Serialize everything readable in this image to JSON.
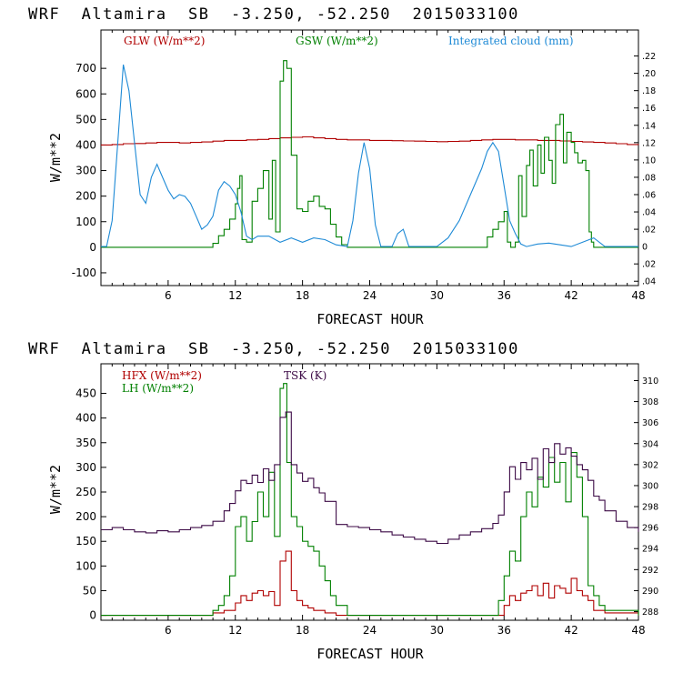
{
  "chart_data": [
    {
      "type": "line",
      "title": "WRF  Altamira  SB  -3.250, -52.250  2015033100",
      "xlabel": "FORECAST HOUR",
      "ylabel": "W/m**2",
      "xlim": [
        0,
        48
      ],
      "ylim": [
        -150,
        850
      ],
      "y2lim": [
        -0.045,
        0.25
      ],
      "xticks": [
        6,
        12,
        18,
        24,
        30,
        36,
        42,
        48
      ],
      "xtick_labels": [
        "6",
        "12",
        "18",
        "24",
        "30",
        "36",
        "42",
        "48"
      ],
      "yticks": [
        -100,
        0,
        100,
        200,
        300,
        400,
        500,
        600,
        700
      ],
      "ytick_labels": [
        "-100",
        "0",
        "100",
        "200",
        "300",
        "400",
        "500",
        "600",
        "700"
      ],
      "y2ticks": [
        -0.04,
        -0.02,
        0,
        0.02,
        0.04,
        0.06,
        0.08,
        0.1,
        0.12,
        0.14,
        0.16,
        0.18,
        0.2,
        0.22
      ],
      "y2tick_labels": [
        ".04",
        ".02",
        "0",
        ".02",
        ".04",
        ".06",
        ".08",
        ".10",
        ".12",
        ".14",
        ".16",
        ".18",
        ".20",
        ".22"
      ],
      "series": [
        {
          "name": "GLW (W/m**2)",
          "axis": "left",
          "color": "#b00000",
          "step": true,
          "x": [
            0,
            1,
            2,
            3,
            4,
            5,
            6,
            7,
            8,
            9,
            10,
            11,
            12,
            13,
            14,
            15,
            16,
            17,
            18,
            19,
            20,
            21,
            22,
            23,
            24,
            25,
            26,
            27,
            28,
            29,
            30,
            31,
            32,
            33,
            34,
            35,
            36,
            37,
            38,
            39,
            40,
            41,
            42,
            43,
            44,
            45,
            46,
            47,
            48
          ],
          "y": [
            400,
            402,
            405,
            406,
            408,
            410,
            410,
            408,
            410,
            412,
            415,
            418,
            418,
            420,
            422,
            425,
            428,
            430,
            432,
            428,
            425,
            422,
            420,
            420,
            418,
            418,
            417,
            416,
            415,
            414,
            413,
            414,
            415,
            418,
            420,
            422,
            422,
            420,
            420,
            418,
            418,
            416,
            414,
            412,
            410,
            408,
            405,
            402,
            400
          ]
        },
        {
          "name": "GSW (W/m**2)",
          "axis": "left",
          "color": "#008000",
          "step": true,
          "x": [
            0,
            9.5,
            10,
            10.5,
            11,
            11.5,
            12,
            12.2,
            12.4,
            12.6,
            13,
            13.5,
            14,
            14.5,
            15,
            15.3,
            15.6,
            16,
            16.3,
            16.6,
            17,
            17.5,
            18,
            18.5,
            19,
            19.5,
            20,
            20.5,
            21,
            21.5,
            22,
            34,
            34.5,
            35,
            35.5,
            36,
            36.3,
            36.6,
            37,
            37.3,
            37.6,
            38,
            38.3,
            38.6,
            39,
            39.3,
            39.6,
            40,
            40.3,
            40.6,
            41,
            41.3,
            41.6,
            42,
            42.3,
            42.6,
            43,
            43.3,
            43.6,
            43.8,
            44,
            48
          ],
          "y": [
            0,
            0,
            15,
            45,
            70,
            110,
            170,
            230,
            280,
            30,
            20,
            180,
            230,
            300,
            110,
            340,
            60,
            650,
            730,
            700,
            360,
            150,
            140,
            180,
            200,
            160,
            150,
            90,
            40,
            10,
            0,
            0,
            40,
            70,
            100,
            140,
            20,
            0,
            20,
            280,
            120,
            320,
            380,
            240,
            400,
            290,
            430,
            340,
            250,
            480,
            520,
            330,
            450,
            410,
            370,
            330,
            340,
            300,
            60,
            20,
            0,
            0
          ]
        },
        {
          "name": "Integrated cloud (mm)",
          "axis": "right",
          "color": "#1e8ad6",
          "step": false,
          "x": [
            0,
            0.5,
            1,
            1.5,
            2,
            2.5,
            3,
            3.5,
            4,
            4.5,
            5,
            5.5,
            6,
            6.5,
            7,
            7.5,
            8,
            8.5,
            9,
            9.5,
            10,
            10.5,
            11,
            11.5,
            12,
            12.5,
            13,
            13.5,
            14,
            15,
            16,
            17,
            18,
            19,
            20,
            21,
            22,
            22.5,
            23,
            23.5,
            24,
            24.5,
            25,
            25.5,
            26,
            26.5,
            27,
            27.5,
            28,
            29,
            30,
            31,
            32,
            33,
            34,
            34.5,
            35,
            35.5,
            36,
            36.5,
            37,
            37.5,
            38,
            39,
            40,
            41,
            42,
            43,
            44,
            45,
            46,
            47,
            48
          ],
          "y": [
            0,
            0,
            0.03,
            0.12,
            0.21,
            0.18,
            0.12,
            0.06,
            0.05,
            0.08,
            0.095,
            0.08,
            0.065,
            0.055,
            0.06,
            0.058,
            0.05,
            0.035,
            0.02,
            0.025,
            0.035,
            0.065,
            0.075,
            0.07,
            0.06,
            0.04,
            0.012,
            0.008,
            0.012,
            0.012,
            0.005,
            0.01,
            0.005,
            0.01,
            0.008,
            0.002,
            0,
            0.03,
            0.085,
            0.12,
            0.09,
            0.025,
            0,
            0,
            0,
            0.015,
            0.02,
            0,
            0,
            0,
            0,
            0.01,
            0.03,
            0.06,
            0.09,
            0.11,
            0.12,
            0.11,
            0.07,
            0.03,
            0.015,
            0.003,
            0,
            0.003,
            0.004,
            0.002,
            0,
            0.005,
            0.01,
            0,
            0,
            0,
            0
          ]
        }
      ]
    },
    {
      "type": "line",
      "title": "WRF  Altamira  SB  -3.250, -52.250  2015033100",
      "xlabel": "FORECAST HOUR",
      "ylabel": "W/m**2",
      "xlim": [
        0,
        48
      ],
      "ylim": [
        -10,
        510
      ],
      "y2lim": [
        287.18,
        311.6
      ],
      "xticks": [
        6,
        12,
        18,
        24,
        30,
        36,
        42,
        48
      ],
      "xtick_labels": [
        "6",
        "12",
        "18",
        "24",
        "30",
        "36",
        "42",
        "48"
      ],
      "yticks": [
        0,
        50,
        100,
        150,
        200,
        250,
        300,
        350,
        400,
        450
      ],
      "ytick_labels": [
        "0",
        "50",
        "100",
        "150",
        "200",
        "250",
        "300",
        "350",
        "400",
        "450"
      ],
      "y2ticks": [
        288,
        290,
        292,
        294,
        296,
        298,
        300,
        302,
        304,
        306,
        308,
        310
      ],
      "y2tick_labels": [
        "288",
        "290",
        "292",
        "294",
        "296",
        "298",
        "300",
        "302",
        "304",
        "306",
        "308",
        "310"
      ],
      "series": [
        {
          "name": "HFX (W/m**2)",
          "axis": "left",
          "color": "#b00000",
          "step": true,
          "x": [
            0,
            9,
            10,
            11,
            12,
            12.5,
            13,
            13.5,
            14,
            14.5,
            15,
            15.5,
            16,
            16.5,
            17,
            17.5,
            18,
            18.5,
            19,
            20,
            21,
            22,
            35,
            36,
            36.5,
            37,
            37.5,
            38,
            38.5,
            39,
            39.5,
            40,
            40.5,
            41,
            41.5,
            42,
            42.5,
            43,
            43.5,
            44,
            45,
            48
          ],
          "y": [
            0,
            0,
            5,
            10,
            25,
            40,
            30,
            45,
            50,
            40,
            48,
            20,
            110,
            130,
            50,
            30,
            20,
            15,
            10,
            5,
            0,
            0,
            0,
            20,
            40,
            30,
            45,
            50,
            60,
            40,
            65,
            35,
            60,
            55,
            45,
            75,
            50,
            40,
            30,
            10,
            5,
            0
          ]
        },
        {
          "name": "LH (W/m**2)",
          "axis": "left",
          "color": "#008000",
          "step": true,
          "x": [
            0,
            9,
            10,
            10.5,
            11,
            11.5,
            12,
            12.5,
            13,
            13.5,
            14,
            14.5,
            15,
            15.5,
            16,
            16.3,
            16.6,
            17,
            17.5,
            18,
            18.5,
            19,
            19.5,
            20,
            20.5,
            21,
            22,
            35,
            35.5,
            36,
            36.5,
            37,
            37.5,
            38,
            38.5,
            39,
            39.5,
            40,
            40.5,
            41,
            41.5,
            42,
            42.5,
            43,
            43.5,
            44,
            44.5,
            45,
            48
          ],
          "y": [
            0,
            0,
            10,
            20,
            40,
            80,
            180,
            200,
            150,
            190,
            250,
            200,
            290,
            160,
            460,
            470,
            310,
            200,
            180,
            150,
            140,
            130,
            100,
            70,
            40,
            20,
            0,
            0,
            30,
            80,
            130,
            110,
            200,
            250,
            220,
            280,
            260,
            320,
            270,
            310,
            230,
            330,
            280,
            200,
            60,
            40,
            20,
            10,
            0
          ]
        },
        {
          "name": "TSK (K)",
          "axis": "right",
          "color": "#3c0a46",
          "step": true,
          "x": [
            0,
            1,
            2,
            3,
            4,
            5,
            6,
            7,
            8,
            9,
            10,
            11,
            11.5,
            12,
            12.5,
            13,
            13.5,
            14,
            14.5,
            15,
            15.5,
            16,
            16.5,
            17,
            17.5,
            18,
            18.5,
            19,
            19.5,
            20,
            21,
            22,
            23,
            24,
            25,
            26,
            27,
            28,
            29,
            30,
            31,
            32,
            33,
            34,
            35,
            35.5,
            36,
            36.5,
            37,
            37.5,
            38,
            38.5,
            39,
            39.5,
            40,
            40.5,
            41,
            41.5,
            42,
            42.5,
            43,
            43.5,
            44,
            44.5,
            45,
            46,
            47,
            48
          ],
          "y": [
            295.8,
            296,
            295.8,
            295.6,
            295.5,
            295.7,
            295.6,
            295.8,
            296,
            296.2,
            296.6,
            297.6,
            298.3,
            299.5,
            300.5,
            300.2,
            301,
            300.3,
            301.6,
            300.5,
            302,
            306.5,
            307,
            302,
            301.2,
            300.4,
            300.7,
            299.8,
            299.3,
            298.5,
            296.3,
            296.1,
            296.0,
            295.8,
            295.6,
            295.3,
            295.1,
            294.9,
            294.7,
            294.5,
            294.9,
            295.3,
            295.6,
            295.9,
            296.4,
            297.2,
            299.4,
            301.8,
            300.6,
            302.2,
            301.5,
            302.6,
            300.6,
            303.5,
            302.2,
            304,
            303,
            303.6,
            302.8,
            302,
            301.5,
            300.5,
            299,
            298.6,
            297.6,
            296.6,
            296,
            295.6
          ]
        }
      ]
    }
  ]
}
